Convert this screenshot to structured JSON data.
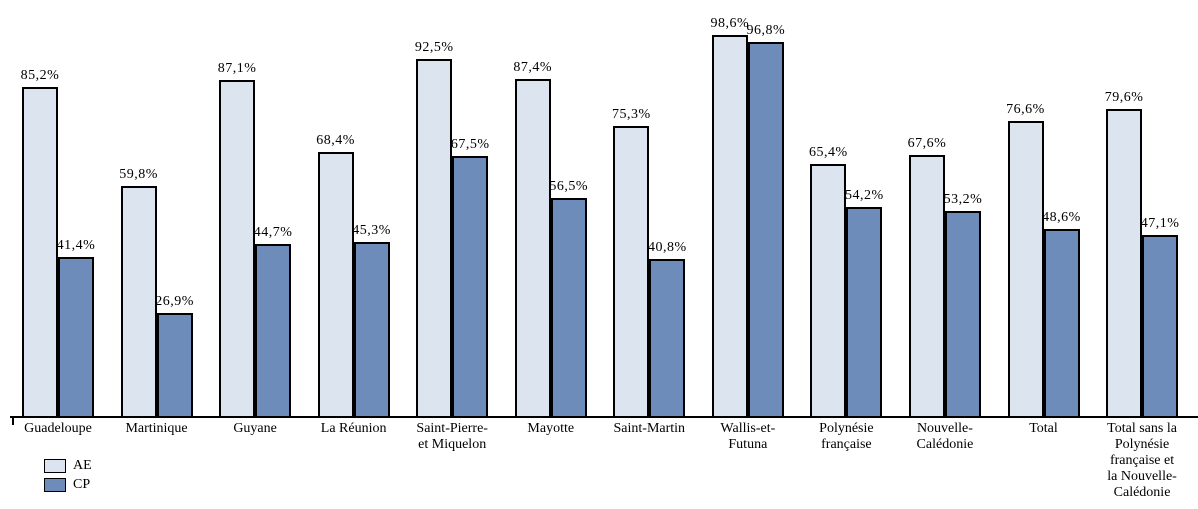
{
  "chart_data": {
    "type": "bar",
    "title": "",
    "xlabel": "",
    "ylabel": "",
    "ylim": [
      0,
      100
    ],
    "grid": false,
    "legend_position": "bottom-left",
    "value_format": "percent-comma-decimal",
    "categories": [
      "Guadeloupe",
      "Martinique",
      "Guyane",
      "La Réunion",
      "Saint-Pierre-\net Miquelon",
      "Mayotte",
      "Saint-Martin",
      "Wallis-et-\nFutuna",
      "Polynésie\nfrançaise",
      "Nouvelle-\nCalédonie",
      "Total",
      "Total sans la\nPolynésie\nfrançaise et\nla Nouvelle-\nCalédonie"
    ],
    "series": [
      {
        "name": "AE",
        "color": "#dce4f0",
        "border_color": "#000000",
        "values": [
          85.2,
          59.8,
          87.1,
          68.4,
          92.5,
          87.4,
          75.3,
          98.6,
          65.4,
          67.6,
          76.6,
          79.6
        ],
        "labels": [
          "85,2%",
          "59,8%",
          "87,1%",
          "68,4%",
          "92,5%",
          "87,4%",
          "75,3%",
          "98,6%",
          "65,4%",
          "67,6%",
          "76,6%",
          "79,6%"
        ]
      },
      {
        "name": "CP",
        "color": "#6e8cba",
        "border_color": "#000000",
        "values": [
          41.4,
          26.9,
          44.7,
          45.3,
          67.5,
          56.5,
          40.8,
          96.8,
          54.2,
          53.2,
          48.6,
          47.1
        ],
        "labels": [
          "41,4%",
          "26,9%",
          "44,7%",
          "45,3%",
          "67,5%",
          "56,5%",
          "40,8%",
          "96,8%",
          "54,2%",
          "53,2%",
          "48,6%",
          "47,1%"
        ]
      }
    ]
  },
  "legend": {
    "ae_label": "AE",
    "cp_label": "CP"
  }
}
